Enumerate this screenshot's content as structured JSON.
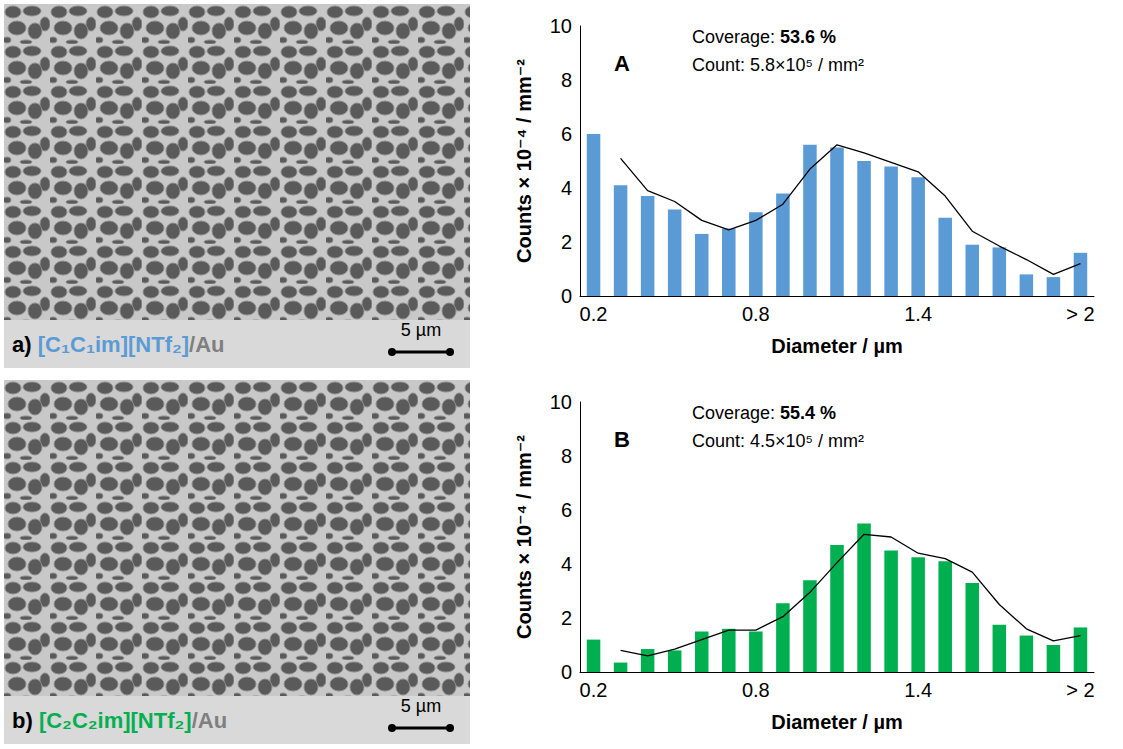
{
  "chart_data": [
    {
      "type": "bar",
      "panel": "A",
      "coverage_label": "Coverage:",
      "coverage": "53.6 %",
      "count_label": "Count:",
      "count": "5.8×10⁵ / mm²",
      "x_label": "Diameter / µm",
      "y_label": "Counts × 10⁻⁴ / mm⁻²",
      "categories": [
        "0.2",
        null,
        null,
        null,
        null,
        null,
        "0.8",
        null,
        null,
        null,
        null,
        null,
        "1.4",
        null,
        null,
        null,
        null,
        null,
        "> 2"
      ],
      "series": [
        {
          "type": "bar",
          "color": "#5b9bd5",
          "values": [
            6.0,
            4.1,
            3.7,
            3.2,
            2.3,
            2.5,
            3.1,
            3.8,
            5.6,
            5.5,
            5.0,
            4.8,
            4.4,
            2.9,
            1.9,
            1.8,
            0.8,
            0.7,
            1.6
          ]
        },
        {
          "type": "line",
          "color": "#000000",
          "values": [
            null,
            5.1,
            3.9,
            3.5,
            2.8,
            2.45,
            2.8,
            3.4,
            4.7,
            5.6,
            5.3,
            4.95,
            4.6,
            3.7,
            2.4,
            1.85,
            1.35,
            0.8,
            1.2
          ]
        }
      ],
      "ylim": [
        0,
        10
      ],
      "yticks": [
        0,
        2,
        4,
        6,
        8,
        10
      ],
      "grid": false
    },
    {
      "type": "bar",
      "panel": "B",
      "coverage_label": "Coverage:",
      "coverage": "55.4 %",
      "count_label": "Count:",
      "count": "4.5×10⁵ / mm²",
      "x_label": "Diameter / µm",
      "y_label": "Counts × 10⁻⁴ / mm⁻²",
      "categories": [
        "0.2",
        null,
        null,
        null,
        null,
        null,
        "0.8",
        null,
        null,
        null,
        null,
        null,
        "1.4",
        null,
        null,
        null,
        null,
        null,
        "> 2"
      ],
      "series": [
        {
          "type": "bar",
          "color": "#00b050",
          "values": [
            1.2,
            0.35,
            0.85,
            0.8,
            1.5,
            1.6,
            1.5,
            2.55,
            3.4,
            4.7,
            5.5,
            4.5,
            4.25,
            4.1,
            3.3,
            1.75,
            1.35,
            1.0,
            1.65
          ]
        },
        {
          "type": "line",
          "color": "#000000",
          "values": [
            null,
            0.8,
            0.6,
            0.85,
            1.2,
            1.55,
            1.55,
            2.05,
            2.95,
            4.05,
            5.1,
            5.0,
            4.4,
            4.2,
            3.7,
            2.5,
            1.6,
            1.15,
            1.35
          ]
        }
      ],
      "ylim": [
        0,
        10
      ],
      "yticks": [
        0,
        2,
        4,
        6,
        8,
        10
      ],
      "grid": false
    }
  ],
  "image_panels": [
    {
      "letter": "a)",
      "compound": "[C₁C₁im][NTf₂]",
      "compound_color": "#5b9bd5",
      "substrate": "/Au",
      "scale_bar": "5 µm"
    },
    {
      "letter": "b)",
      "compound": "[C₂C₂im][NTf₂]",
      "compound_color": "#00b050",
      "substrate": "/Au",
      "scale_bar": "5 µm"
    }
  ]
}
